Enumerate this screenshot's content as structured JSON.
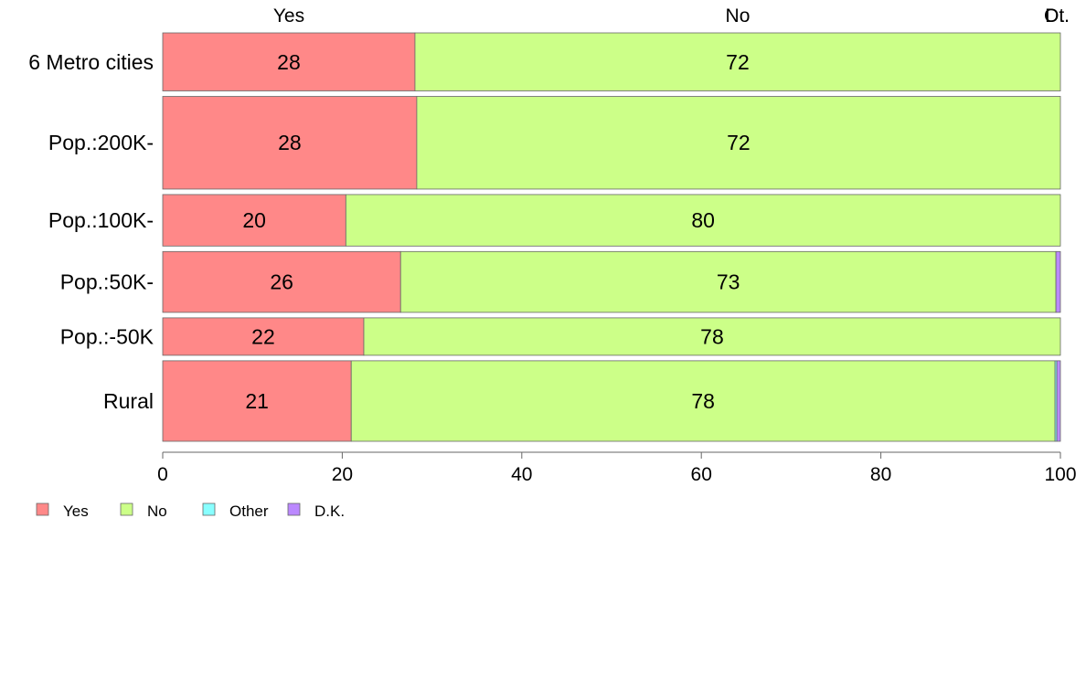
{
  "chart_data": {
    "type": "bar",
    "orientation": "horizontal",
    "stacked": true,
    "categories": [
      "6 Metro cities",
      "Pop.:200K-",
      "Pop.:100K-",
      "Pop.:50K-",
      "Pop.:-50K",
      "Rural"
    ],
    "category_weights": [
      0.62,
      0.99,
      0.55,
      0.65,
      0.4,
      0.86
    ],
    "series": [
      {
        "name": "Yes",
        "color": "#ff8888",
        "values": [
          28.1,
          28.3,
          20.4,
          26.5,
          22.4,
          21.0
        ]
      },
      {
        "name": "No",
        "color": "#ccff88",
        "values": [
          71.9,
          71.7,
          79.6,
          73.0,
          77.6,
          78.4
        ]
      },
      {
        "name": "Other",
        "color": "#88ffff",
        "values": [
          0,
          0,
          0,
          0,
          0,
          0.2
        ]
      },
      {
        "name": "D.K.",
        "color": "#bb88ff",
        "values": [
          0,
          0,
          0,
          0.5,
          0,
          0.4
        ]
      }
    ],
    "data_labels": [
      [
        "28",
        "28",
        "20",
        "26",
        "22",
        "21"
      ],
      [
        "72",
        "72",
        "80",
        "73",
        "78",
        "78"
      ]
    ],
    "top_labels": [
      "Yes",
      "No",
      "Ot.",
      "D.."
    ],
    "xlim": [
      0,
      100
    ],
    "xticks": [
      "0",
      "20",
      "40",
      "60",
      "80",
      "100"
    ],
    "legend_position": "bottom-left",
    "grid": false,
    "title": "",
    "xlabel": "",
    "ylabel": ""
  }
}
